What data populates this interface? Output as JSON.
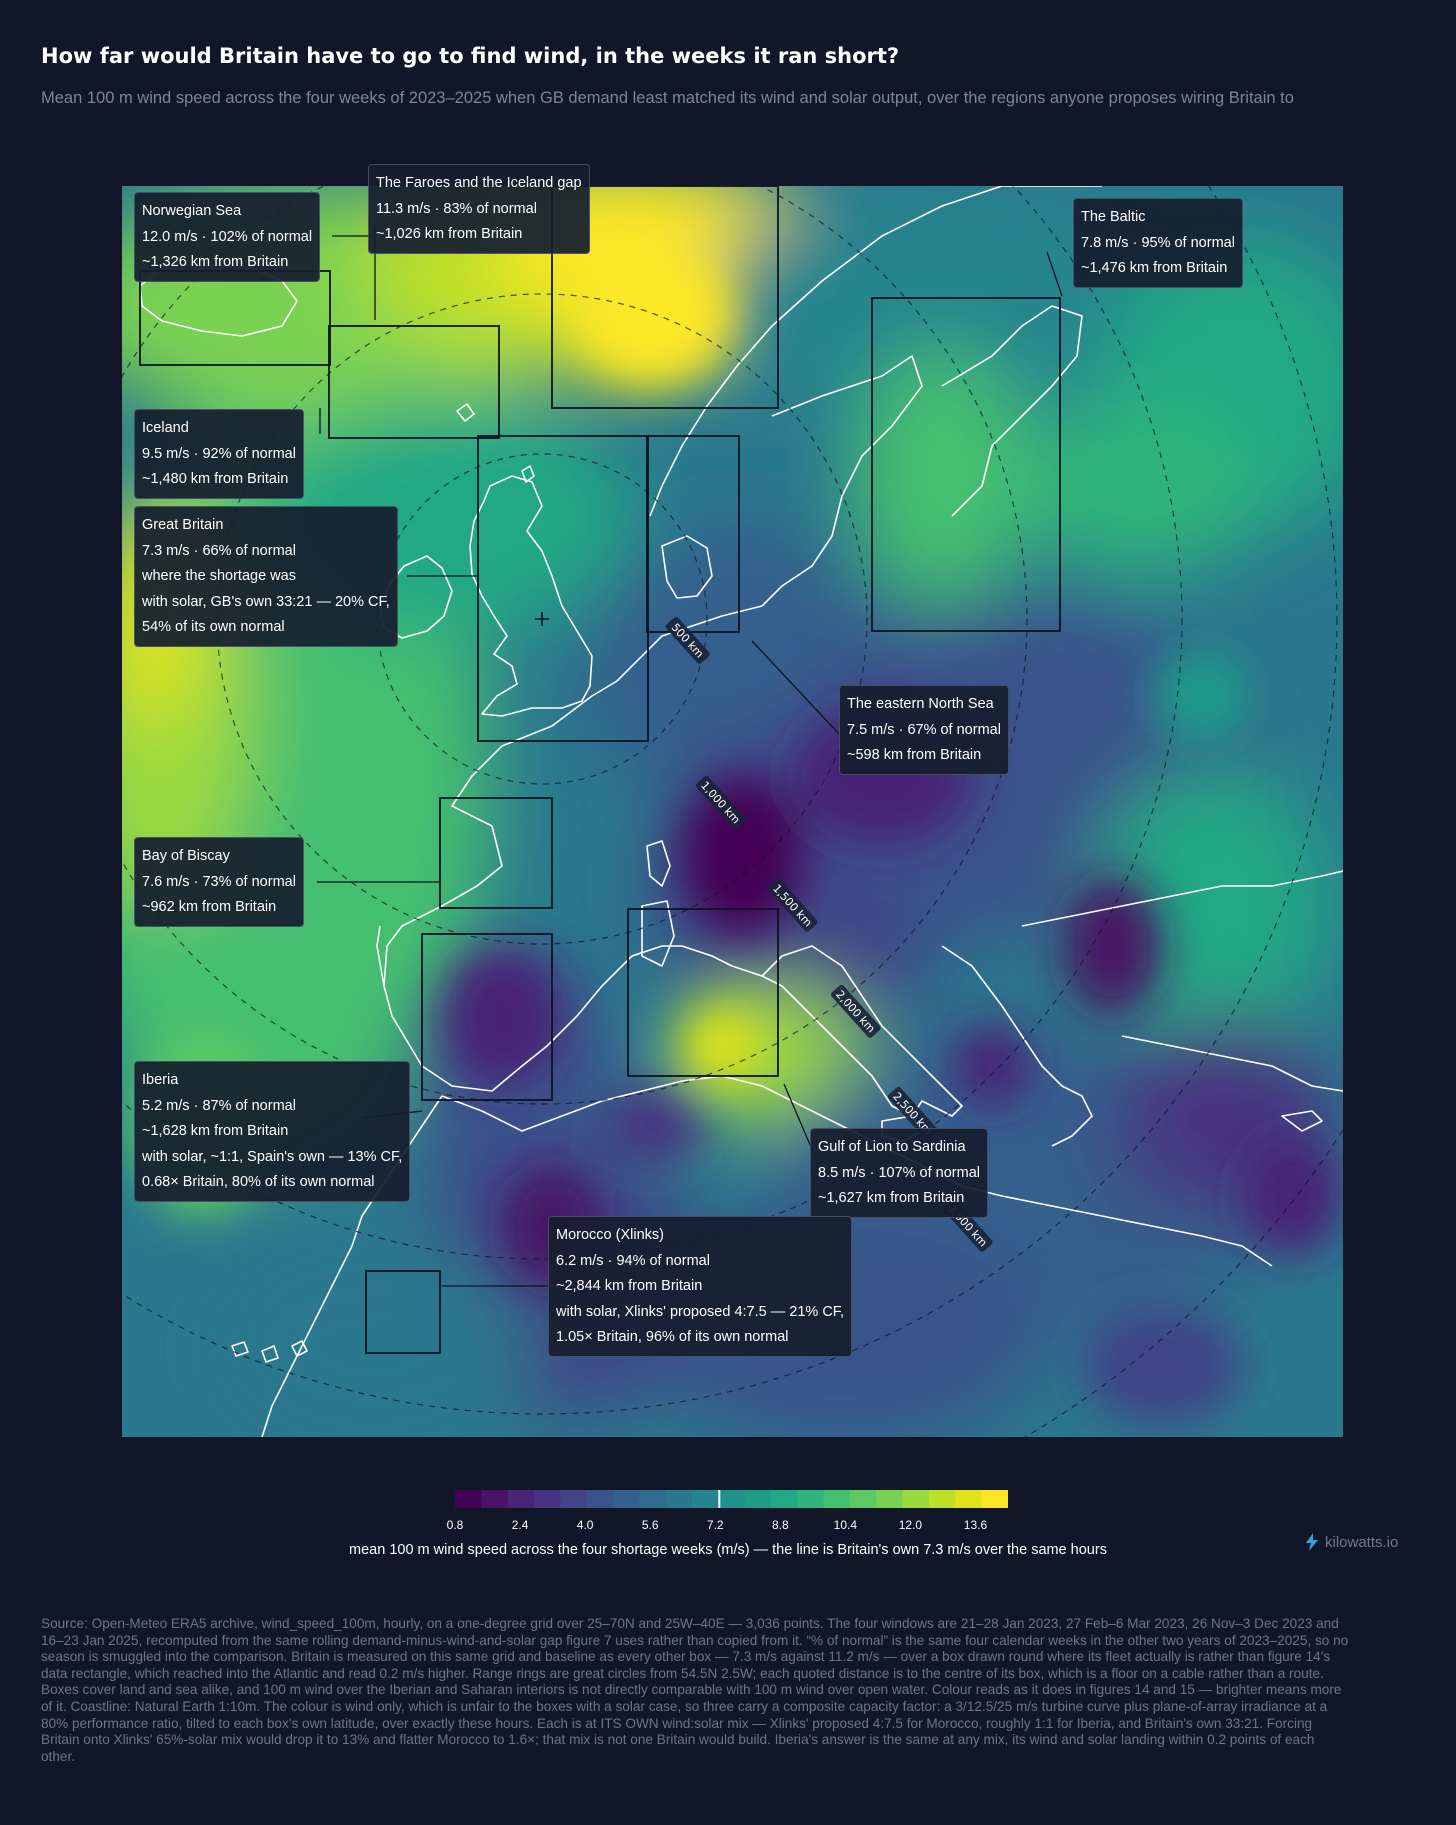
{
  "title": "How far would Britain have to go to find wind, in the weeks it ran short?",
  "subtitle": "Mean 100 m wind speed across the four weeks of 2023–2025 when GB demand least matched its wind and solar output, over the regions anyone proposes wiring Britain to",
  "map": {
    "ring_labels": [
      "500 km",
      "1,000 km",
      "1,500 km",
      "2,000 km",
      "2,500 km",
      "3,000 km"
    ],
    "colors": {
      "background": "#111729",
      "coast": "#ffffff",
      "box": "#0d1322"
    }
  },
  "callouts": [
    {
      "id": "norwegian-sea",
      "name": "Norwegian Sea",
      "speed": "12.0 m/s",
      "pct": "102% of normal",
      "distance": "~1,326 km from Britain",
      "extra": []
    },
    {
      "id": "faroes",
      "name": "The Faroes and the Iceland gap",
      "speed": "11.3 m/s",
      "pct": "83% of normal",
      "distance": "~1,026 km from Britain",
      "extra": []
    },
    {
      "id": "baltic",
      "name": "The Baltic",
      "speed": "7.8 m/s",
      "pct": "95% of normal",
      "distance": "~1,476 km from Britain",
      "extra": []
    },
    {
      "id": "iceland",
      "name": "Iceland",
      "speed": "9.5 m/s",
      "pct": "92% of normal",
      "distance": "~1,480 km from Britain",
      "extra": []
    },
    {
      "id": "great-britain",
      "name": "Great Britain",
      "speed": "7.3 m/s",
      "pct": "66% of normal",
      "distance": "where the shortage was",
      "extra": [
        "with solar, GB's own 33:21 — 20% CF,",
        "54% of its own normal"
      ]
    },
    {
      "id": "eastern-north-sea",
      "name": "The eastern North Sea",
      "speed": "7.5 m/s",
      "pct": "67% of normal",
      "distance": "~598 km from Britain",
      "extra": []
    },
    {
      "id": "biscay",
      "name": "Bay of Biscay",
      "speed": "7.6 m/s",
      "pct": "73% of normal",
      "distance": "~962 km from Britain",
      "extra": []
    },
    {
      "id": "iberia",
      "name": "Iberia",
      "speed": "5.2 m/s",
      "pct": "87% of normal",
      "distance": "~1,628 km from Britain",
      "extra": [
        "with solar, ~1:1, Spain's own — 13% CF,",
        "0.68× Britain, 80% of its own normal"
      ]
    },
    {
      "id": "gulf-of-lion",
      "name": "Gulf of Lion to Sardinia",
      "speed": "8.5 m/s",
      "pct": "107% of normal",
      "distance": "~1,627 km from Britain",
      "extra": []
    },
    {
      "id": "morocco",
      "name": "Morocco (Xlinks)",
      "speed": "6.2 m/s",
      "pct": "94% of normal",
      "distance": "~2,844 km from Britain",
      "extra": [
        "with solar, Xlinks' proposed 4:7.5 — 21% CF,",
        "1.05× Britain, 96% of its own normal"
      ]
    }
  ],
  "colorbar": {
    "ticks": [
      "0.8",
      "2.4",
      "4.0",
      "5.6",
      "7.2",
      "8.8",
      "10.4",
      "12.0",
      "13.6"
    ],
    "min": 0.8,
    "max": 14.4,
    "marker_value": 7.3,
    "label": "mean 100 m wind speed across the four shortage weeks (m/s) — the line is Britain's own 7.3 m/s over the same hours",
    "colors": [
      "#440154",
      "#471365",
      "#482475",
      "#463480",
      "#414487",
      "#3b528b",
      "#355f8d",
      "#2f6c8e",
      "#2a788e",
      "#25848e",
      "#21918c",
      "#1e9c89",
      "#22a884",
      "#2fb47c",
      "#44bf70",
      "#5ec962",
      "#7ad151",
      "#9bd93c",
      "#bddf26",
      "#dfe318",
      "#fde725"
    ]
  },
  "brand": "kilowatts.io",
  "source": "Source: Open-Meteo ERA5 archive, wind_speed_100m, hourly, on a one-degree grid over 25–70N and 25W–40E — 3,036 points. The four windows are 21–28 Jan 2023, 27 Feb–6 Mar 2023, 26 Nov–3 Dec 2023 and 16–23 Jan 2025, recomputed from the same rolling demand-minus-wind-and-solar gap figure 7 uses rather than copied from it. “% of normal” is the same four calendar weeks in the other two years of 2023–2025, so no season is smuggled into the comparison. Britain is measured on this same grid and baseline as every other box — 7.3 m/s against 11.2 m/s — over a box drawn round where its fleet actually is rather than figure 14's data rectangle, which reached into the Atlantic and read 0.2 m/s higher. Range rings are great circles from 54.5N 2.5W; each quoted distance is to the centre of its box, which is a floor on a cable rather than a route. Boxes cover land and sea alike, and 100 m wind over the Iberian and Saharan interiors is not directly comparable with 100 m wind over open water. Colour reads as it does in figures 14 and 15 — brighter means more of it. Coastline: Natural Earth 1:10m. The colour is wind only, which is unfair to the boxes with a solar case, so three carry a composite capacity factor: a 3/12.5/25 m/s turbine curve plus plane-of-array irradiance at a 80% performance ratio, tilted to each box's own latitude, over exactly these hours. Each is at ITS OWN wind:solar mix — Xlinks' proposed 4:7.5 for Morocco, roughly 1:1 for Iberia, and Britain's own 33:21. Forcing Britain onto Xlinks' 65%-solar mix would drop it to 13% and flatter Morocco to 1.6×; that mix is not one Britain would build. Iberia's answer is the same at any mix, its wind and solar landing within 0.2 points of each other."
}
